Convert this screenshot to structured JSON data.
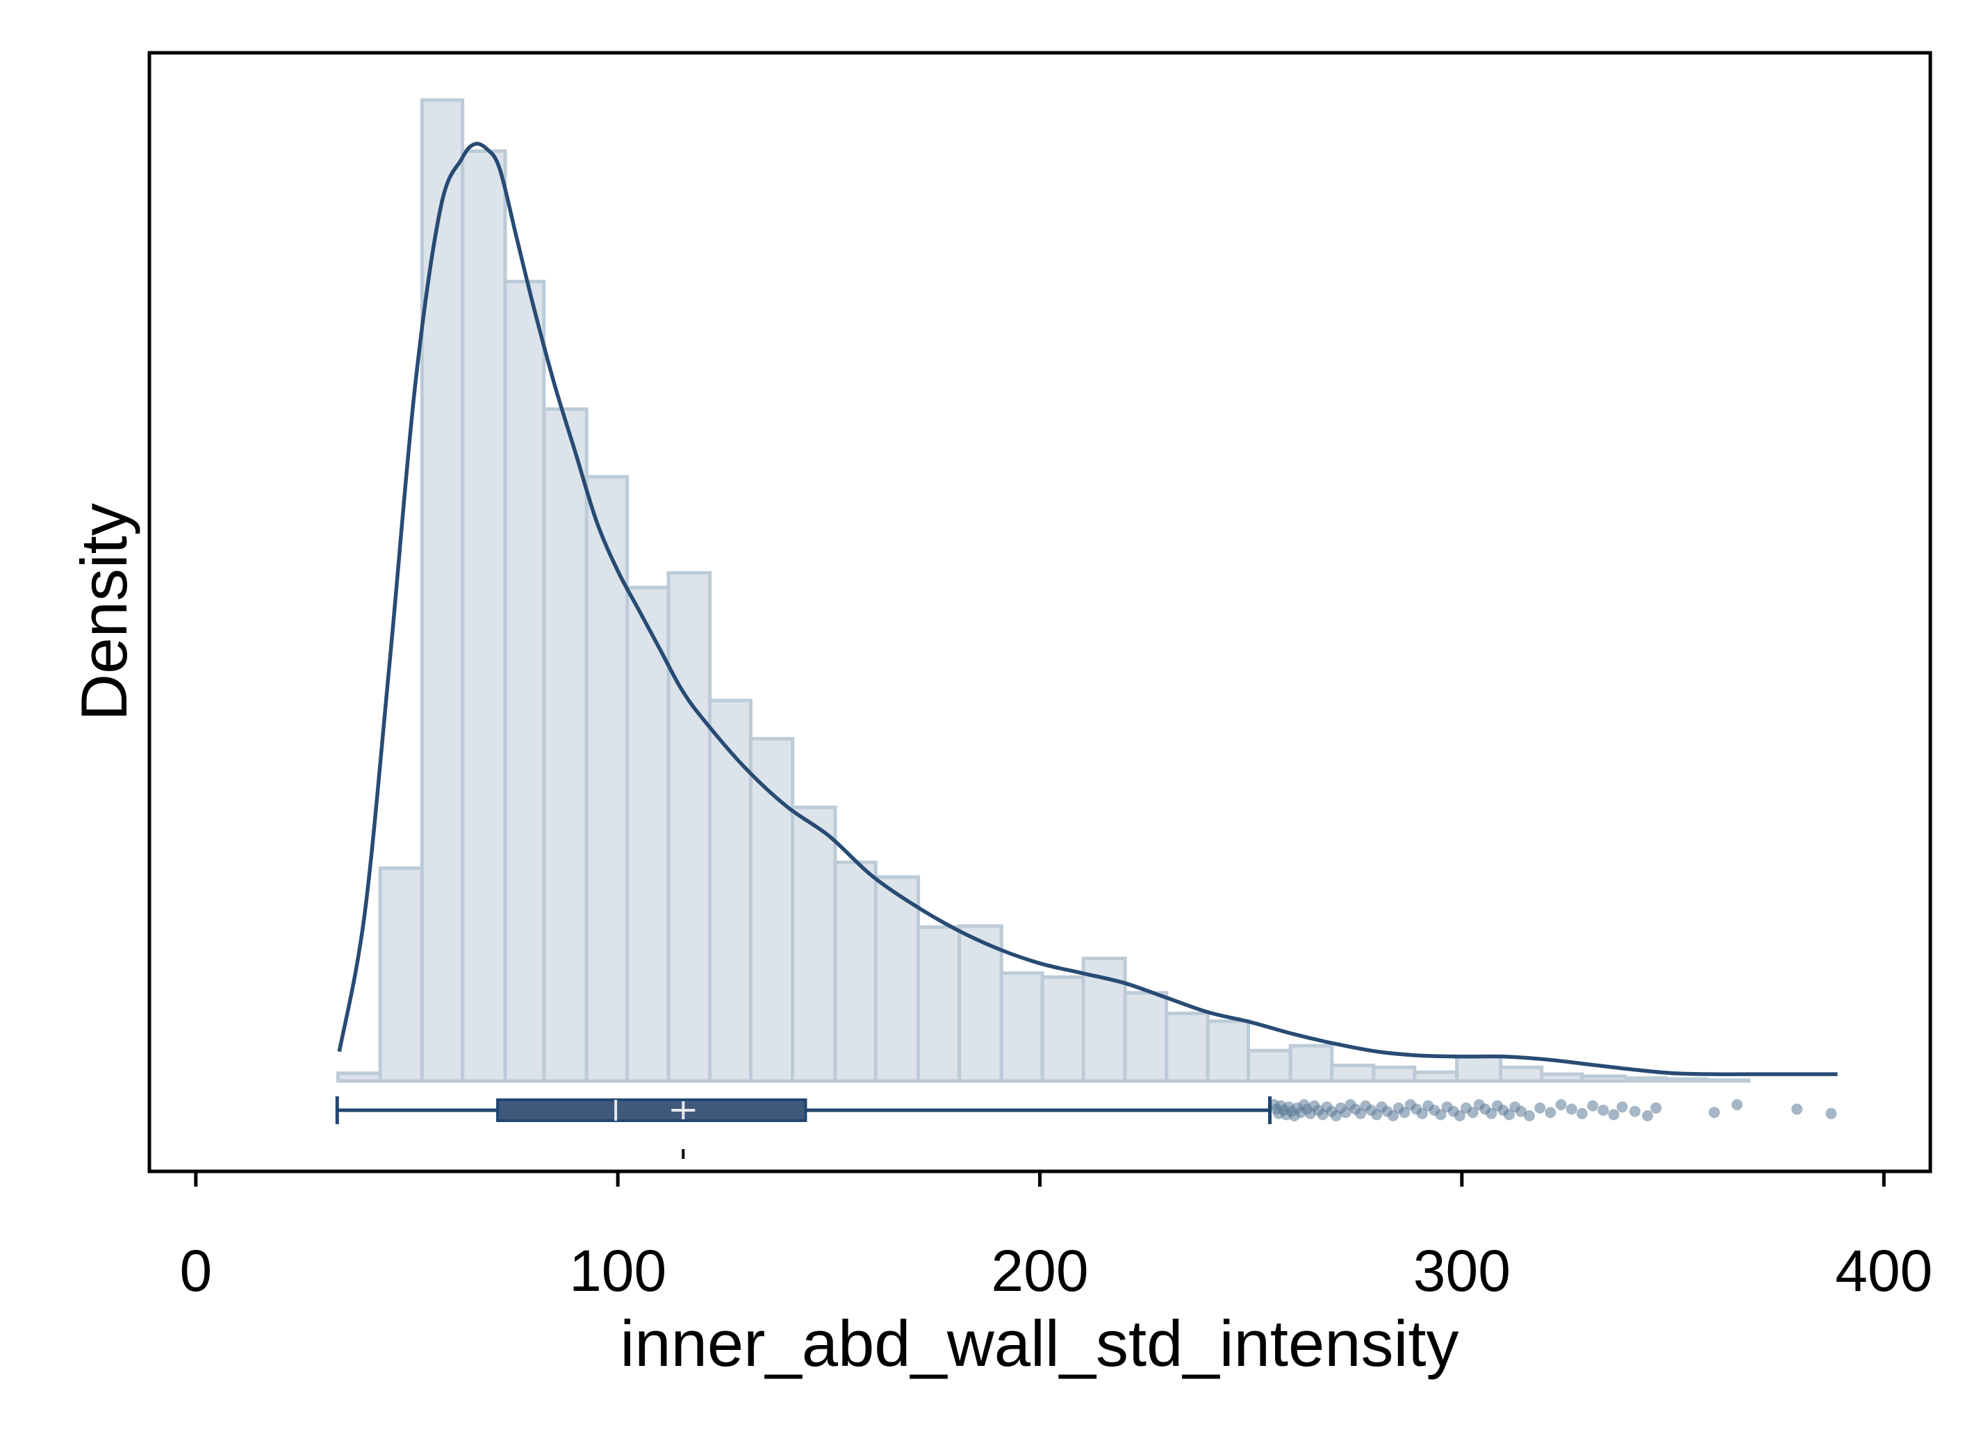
{
  "chart_data": {
    "type": "histogram",
    "title": "",
    "xlabel": "inner_abd_wall_std_intensity",
    "ylabel": "Density",
    "xlim": [
      -11,
      411
    ],
    "x_ticks": [
      0,
      100,
      200,
      300,
      400
    ],
    "y_ticks_shown": false,
    "grid": false,
    "colors": {
      "bar_fill": "#dce3ea",
      "bar_edge": "#bccbd8",
      "kde_line": "#284b74",
      "box_fill": "#40597b",
      "box_line": "#1f4670",
      "outlier": "#5b7a98",
      "median_marker": "#e6e9ee"
    },
    "histogram": {
      "bin_edges": [
        33.7,
        43.7,
        53.6,
        63.2,
        73.3,
        82.5,
        92.6,
        102.2,
        112.0,
        121.8,
        131.5,
        141.4,
        151.5,
        161.1,
        171.2,
        180.9,
        190.9,
        200.6,
        210.3,
        220.2,
        230.0,
        239.8,
        249.4,
        259.4,
        269.2,
        279.1,
        288.8,
        298.8,
        309.2,
        318.9,
        328.5,
        338.7,
        348.3,
        358.1,
        368.0
      ],
      "heights": [
        0.008,
        0.217,
        1.0,
        0.948,
        0.815,
        0.685,
        0.616,
        0.503,
        0.518,
        0.388,
        0.349,
        0.279,
        0.223,
        0.208,
        0.157,
        0.158,
        0.11,
        0.106,
        0.125,
        0.09,
        0.069,
        0.061,
        0.031,
        0.036,
        0.016,
        0.014,
        0.009,
        0.025,
        0.014,
        0.007,
        0.005,
        0.003,
        0.002,
        0.001
      ]
    },
    "kde": {
      "x": [
        34,
        40,
        46,
        52,
        58,
        63,
        66,
        69,
        72,
        76,
        80,
        85,
        90,
        95,
        100,
        105,
        110,
        115,
        120,
        130,
        140,
        150,
        160,
        170,
        180,
        190,
        200,
        210,
        220,
        230,
        240,
        250,
        260,
        270,
        280,
        290,
        300,
        310,
        320,
        330,
        340,
        350,
        360,
        370,
        380,
        389
      ],
      "y": [
        0.03,
        0.17,
        0.43,
        0.71,
        0.89,
        0.94,
        0.955,
        0.95,
        0.93,
        0.86,
        0.79,
        0.71,
        0.64,
        0.57,
        0.52,
        0.48,
        0.44,
        0.4,
        0.37,
        0.32,
        0.28,
        0.25,
        0.21,
        0.18,
        0.155,
        0.135,
        0.12,
        0.11,
        0.1,
        0.085,
        0.07,
        0.06,
        0.048,
        0.038,
        0.03,
        0.026,
        0.025,
        0.025,
        0.022,
        0.017,
        0.012,
        0.008,
        0.007,
        0.007,
        0.007,
        0.007
      ]
    },
    "boxplot": {
      "whisker_low": 33.5,
      "q1": 71.5,
      "median": 99.5,
      "mean": 115.5,
      "q3": 144.5,
      "whisker_high": 254.5,
      "outliers": [
        255.5,
        256.0,
        256.6,
        257.1,
        257.8,
        258.4,
        259.0,
        259.6,
        260.3,
        261.0,
        261.8,
        262.6,
        263.3,
        264.1,
        265.0,
        266.0,
        267.0,
        268.0,
        269.1,
        270.2,
        271.3,
        272.5,
        273.6,
        274.8,
        276.0,
        277.2,
        278.5,
        279.8,
        281.0,
        282.3,
        283.7,
        285.0,
        286.4,
        287.8,
        289.2,
        290.6,
        292.0,
        293.5,
        295.0,
        296.5,
        298.0,
        299.5,
        301.0,
        302.6,
        304.1,
        305.5,
        307.0,
        308.4,
        309.8,
        311.2,
        312.6,
        314.0,
        316.0,
        318.5,
        321.0,
        323.5,
        326.0,
        328.5,
        331.0,
        333.5,
        336.0,
        338.0,
        341.0,
        344.0,
        346.0,
        359.8,
        365.2,
        379.4,
        387.5
      ]
    }
  },
  "axes": {
    "x_tick_labels": [
      "0",
      "100",
      "200",
      "300",
      "400"
    ]
  }
}
